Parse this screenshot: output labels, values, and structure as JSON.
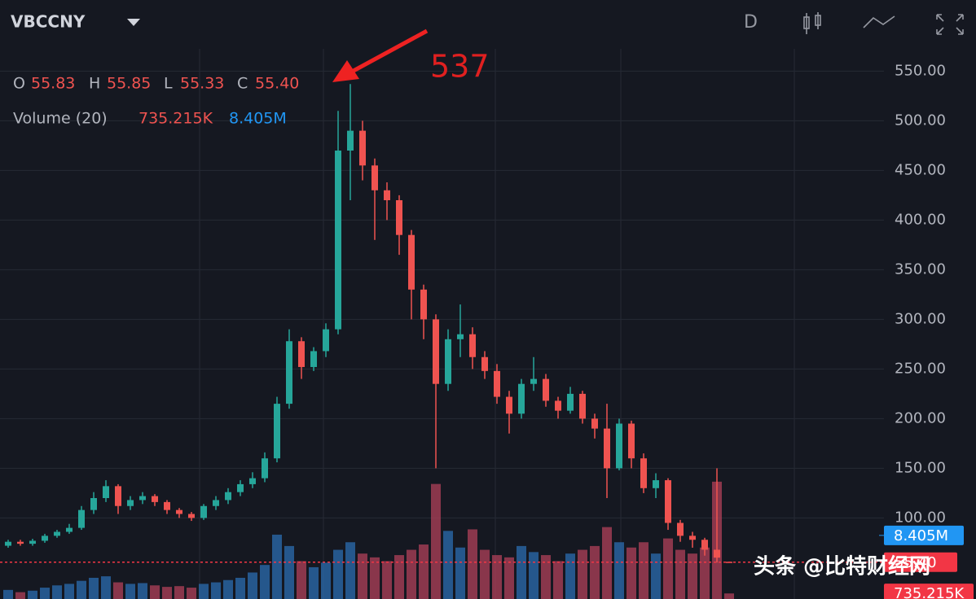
{
  "chart_data": {
    "type": "candlestick",
    "symbol": "VBCCNY",
    "toolbar": "D",
    "ohlc_letters": [
      "O",
      "H",
      "L",
      "C"
    ],
    "open": [
      72,
      76,
      74,
      77,
      82,
      86,
      90,
      108,
      120,
      132,
      112,
      118,
      122,
      116,
      108,
      104,
      100,
      112,
      118,
      126,
      134,
      140,
      160,
      215,
      278,
      252,
      268,
      290,
      470,
      490,
      455,
      430,
      420,
      385,
      330,
      300,
      235,
      280,
      285,
      262,
      248,
      222,
      205,
      235,
      240,
      218,
      208,
      225,
      200,
      190,
      150,
      195,
      160,
      130,
      138,
      95,
      82,
      78,
      68,
      55.83
    ],
    "high": [
      78,
      78,
      79,
      84,
      88,
      94,
      112,
      126,
      138,
      134,
      122,
      126,
      124,
      118,
      110,
      106,
      114,
      122,
      130,
      138,
      146,
      166,
      222,
      290,
      282,
      272,
      296,
      510,
      537,
      500,
      462,
      438,
      425,
      390,
      335,
      305,
      290,
      315,
      292,
      268,
      255,
      228,
      240,
      262,
      245,
      222,
      232,
      228,
      205,
      215,
      200,
      198,
      165,
      145,
      140,
      98,
      86,
      80,
      150,
      55.85
    ],
    "low": [
      70,
      72,
      72,
      75,
      80,
      84,
      88,
      104,
      116,
      104,
      108,
      114,
      112,
      104,
      100,
      97,
      98,
      108,
      114,
      122,
      130,
      136,
      156,
      210,
      240,
      248,
      262,
      285,
      420,
      440,
      380,
      400,
      365,
      300,
      280,
      150,
      228,
      262,
      250,
      240,
      215,
      185,
      200,
      228,
      212,
      200,
      205,
      195,
      180,
      120,
      148,
      150,
      125,
      120,
      88,
      76,
      70,
      62,
      55,
      55.33
    ],
    "close": [
      76,
      74,
      77,
      82,
      86,
      90,
      108,
      120,
      132,
      112,
      118,
      122,
      116,
      108,
      104,
      100,
      112,
      118,
      126,
      134,
      140,
      160,
      215,
      278,
      252,
      268,
      290,
      470,
      490,
      455,
      430,
      420,
      385,
      330,
      300,
      235,
      280,
      285,
      262,
      248,
      222,
      205,
      235,
      240,
      218,
      208,
      225,
      200,
      190,
      150,
      195,
      160,
      130,
      138,
      95,
      82,
      78,
      68,
      60,
      55.4
    ],
    "price_line": {
      "value": 55.4,
      "label": "55.40"
    },
    "up_color": "#26a69a",
    "down_color": "#ef5350",
    "ylim": [
      20,
      570
    ],
    "yticks": [
      {
        "value": 100,
        "label": "100.00"
      },
      {
        "value": 150,
        "label": "150.00"
      },
      {
        "value": 200,
        "label": "200.00"
      },
      {
        "value": 250,
        "label": "250.00"
      },
      {
        "value": 300,
        "label": "300.00"
      },
      {
        "value": 350,
        "label": "350.00"
      },
      {
        "value": 400,
        "label": "400.00"
      },
      {
        "value": 450,
        "label": "450.00"
      },
      {
        "value": 500,
        "label": "500.00"
      },
      {
        "value": 550,
        "label": "550.00"
      }
    ],
    "grid": true,
    "volume": {
      "name": "Volume (20)",
      "axis": "y2",
      "color": "#2b6cb0",
      "values": [
        1.2,
        0.9,
        1.1,
        1.5,
        1.8,
        2.0,
        2.4,
        2.8,
        3.0,
        2.2,
        2.0,
        2.1,
        1.8,
        1.6,
        1.7,
        1.5,
        2.0,
        2.2,
        2.5,
        2.8,
        3.5,
        4.5,
        8.5,
        7.0,
        5.0,
        4.2,
        4.8,
        6.5,
        7.5,
        6.0,
        5.5,
        5.0,
        5.8,
        6.5,
        7.2,
        15.2,
        9.0,
        6.8,
        9.2,
        6.5,
        5.8,
        5.5,
        7.0,
        6.2,
        5.8,
        5.0,
        6.0,
        6.5,
        7.0,
        9.5,
        7.5,
        6.8,
        7.5,
        6.0,
        8.0,
        6.5,
        6.0,
        6.8,
        15.5,
        0.735215
      ],
      "last_label": "735.215K",
      "ma": {
        "value": 8.405,
        "label": "8.405M"
      }
    },
    "y2lim": [
      0,
      20
    ],
    "watermark": "头条 @比特财经网"
  }
}
